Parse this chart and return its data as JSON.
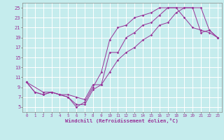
{
  "xlabel": "Windchill (Refroidissement éolien,°C)",
  "background_color": "#c5eced",
  "grid_color": "#ffffff",
  "line_color": "#993399",
  "xlim": [
    -0.5,
    23.5
  ],
  "ylim": [
    4.0,
    26.0
  ],
  "xticks": [
    0,
    1,
    2,
    3,
    4,
    5,
    6,
    7,
    8,
    9,
    10,
    11,
    12,
    13,
    14,
    15,
    16,
    17,
    18,
    19,
    20,
    21,
    22,
    23
  ],
  "yticks": [
    5,
    7,
    9,
    11,
    13,
    15,
    17,
    19,
    21,
    23,
    25
  ],
  "curve1_x": [
    0,
    1,
    2,
    3,
    4,
    5,
    6,
    7,
    8,
    9,
    10,
    11,
    12,
    13,
    14,
    15,
    16,
    17,
    18,
    19,
    20,
    21,
    22,
    23
  ],
  "curve1_y": [
    10,
    8,
    7.5,
    8,
    7.5,
    7,
    5.0,
    6,
    9,
    12,
    18.5,
    21,
    21.5,
    23,
    23.5,
    24,
    25,
    25,
    25,
    23,
    21,
    20.5,
    20,
    19
  ],
  "curve2_x": [
    0,
    1,
    2,
    3,
    4,
    5,
    6,
    7,
    8,
    9,
    10,
    11,
    12,
    13,
    14,
    15,
    16,
    17,
    18,
    19,
    20,
    21,
    22,
    23
  ],
  "curve2_y": [
    10,
    8,
    7.5,
    8,
    7.5,
    7,
    5.5,
    5.5,
    8.5,
    9.5,
    12,
    14.5,
    16,
    17,
    18.5,
    19.5,
    21.5,
    22,
    24,
    25,
    25,
    25,
    20.5,
    19
  ],
  "curve3_x": [
    0,
    2,
    3,
    4,
    5,
    6,
    7,
    8,
    9,
    10,
    11,
    12,
    13,
    14,
    15,
    16,
    17,
    18,
    19,
    20,
    21,
    22,
    23
  ],
  "curve3_y": [
    10,
    8,
    8,
    7.5,
    7.5,
    7,
    6.5,
    9.5,
    9.5,
    16,
    16,
    19,
    20,
    21.5,
    22,
    23.5,
    25,
    25,
    25,
    25,
    20,
    20.5,
    19
  ]
}
